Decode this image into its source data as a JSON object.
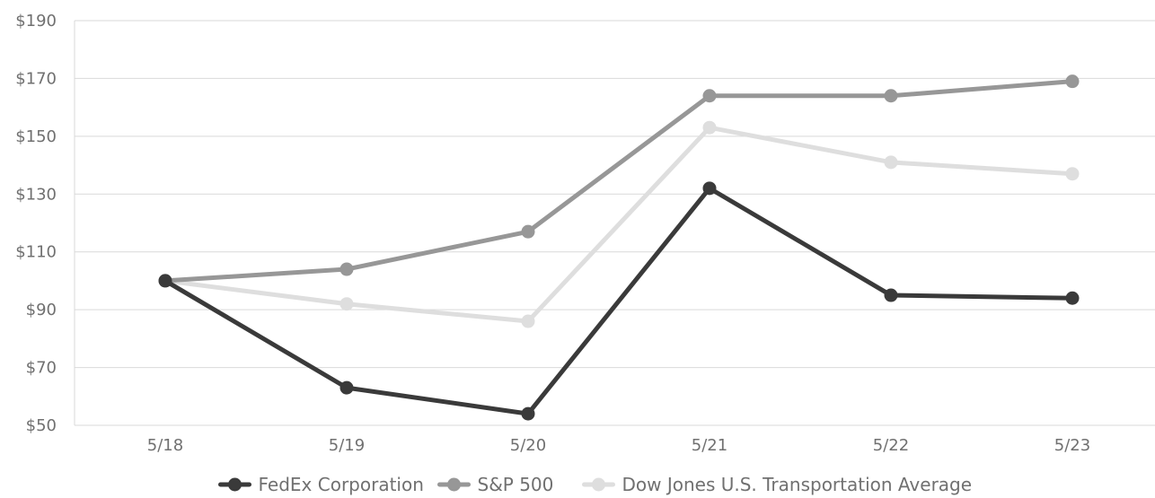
{
  "chart_data": {
    "type": "line",
    "title": "",
    "xlabel": "",
    "ylabel": "",
    "categories": [
      "5/18",
      "5/19",
      "5/20",
      "5/21",
      "5/22",
      "5/23"
    ],
    "ylim": [
      50,
      190
    ],
    "yticks": [
      50,
      70,
      90,
      110,
      130,
      150,
      170,
      190
    ],
    "ytick_labels": [
      "$50",
      "$70",
      "$90",
      "$110",
      "$130",
      "$150",
      "$170",
      "$190"
    ],
    "grid": "horizontal",
    "legend_position": "bottom",
    "series": [
      {
        "name": "FedEx Corporation",
        "color": "#3a3a3a",
        "values": [
          100,
          63,
          54,
          132,
          95,
          94
        ]
      },
      {
        "name": "S&P 500",
        "color": "#979797",
        "values": [
          100,
          104,
          117,
          164,
          164,
          169
        ]
      },
      {
        "name": "Dow Jones U.S. Transportation Average",
        "color": "#dedede",
        "values": [
          100,
          92,
          86,
          153,
          141,
          137
        ]
      }
    ]
  }
}
